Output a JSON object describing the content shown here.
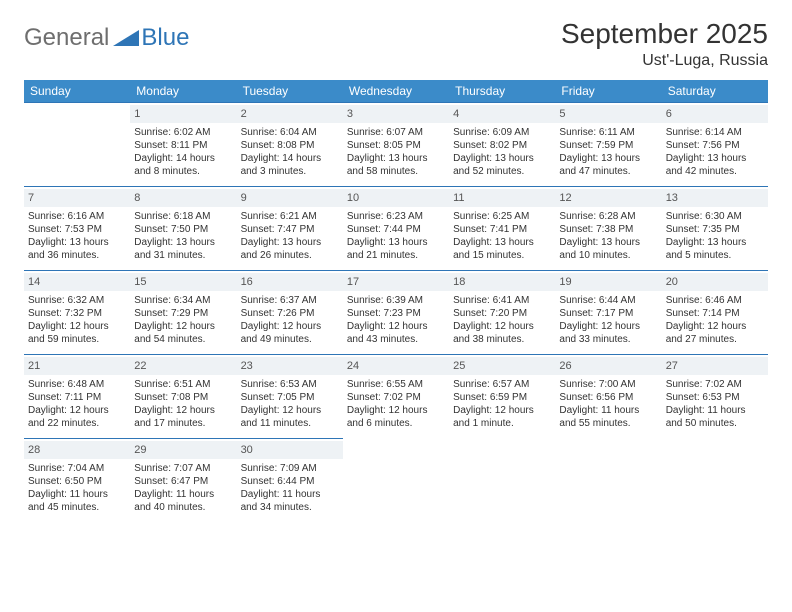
{
  "logo": {
    "general": "General",
    "blue": "Blue"
  },
  "header": {
    "title": "September 2025",
    "location": "Ust'-Luga, Russia"
  },
  "colors": {
    "header_bg": "#3b8bc9",
    "header_text": "#ffffff",
    "daynum_bg": "#eef2f5",
    "row_border": "#2e75b6",
    "logo_general": "#6e6e6e",
    "logo_blue": "#2e75b6"
  },
  "weekdays": [
    "Sunday",
    "Monday",
    "Tuesday",
    "Wednesday",
    "Thursday",
    "Friday",
    "Saturday"
  ],
  "weeks": [
    [
      null,
      {
        "day": "1",
        "sunrise": "Sunrise: 6:02 AM",
        "sunset": "Sunset: 8:11 PM",
        "daylight": "Daylight: 14 hours and 8 minutes."
      },
      {
        "day": "2",
        "sunrise": "Sunrise: 6:04 AM",
        "sunset": "Sunset: 8:08 PM",
        "daylight": "Daylight: 14 hours and 3 minutes."
      },
      {
        "day": "3",
        "sunrise": "Sunrise: 6:07 AM",
        "sunset": "Sunset: 8:05 PM",
        "daylight": "Daylight: 13 hours and 58 minutes."
      },
      {
        "day": "4",
        "sunrise": "Sunrise: 6:09 AM",
        "sunset": "Sunset: 8:02 PM",
        "daylight": "Daylight: 13 hours and 52 minutes."
      },
      {
        "day": "5",
        "sunrise": "Sunrise: 6:11 AM",
        "sunset": "Sunset: 7:59 PM",
        "daylight": "Daylight: 13 hours and 47 minutes."
      },
      {
        "day": "6",
        "sunrise": "Sunrise: 6:14 AM",
        "sunset": "Sunset: 7:56 PM",
        "daylight": "Daylight: 13 hours and 42 minutes."
      }
    ],
    [
      {
        "day": "7",
        "sunrise": "Sunrise: 6:16 AM",
        "sunset": "Sunset: 7:53 PM",
        "daylight": "Daylight: 13 hours and 36 minutes."
      },
      {
        "day": "8",
        "sunrise": "Sunrise: 6:18 AM",
        "sunset": "Sunset: 7:50 PM",
        "daylight": "Daylight: 13 hours and 31 minutes."
      },
      {
        "day": "9",
        "sunrise": "Sunrise: 6:21 AM",
        "sunset": "Sunset: 7:47 PM",
        "daylight": "Daylight: 13 hours and 26 minutes."
      },
      {
        "day": "10",
        "sunrise": "Sunrise: 6:23 AM",
        "sunset": "Sunset: 7:44 PM",
        "daylight": "Daylight: 13 hours and 21 minutes."
      },
      {
        "day": "11",
        "sunrise": "Sunrise: 6:25 AM",
        "sunset": "Sunset: 7:41 PM",
        "daylight": "Daylight: 13 hours and 15 minutes."
      },
      {
        "day": "12",
        "sunrise": "Sunrise: 6:28 AM",
        "sunset": "Sunset: 7:38 PM",
        "daylight": "Daylight: 13 hours and 10 minutes."
      },
      {
        "day": "13",
        "sunrise": "Sunrise: 6:30 AM",
        "sunset": "Sunset: 7:35 PM",
        "daylight": "Daylight: 13 hours and 5 minutes."
      }
    ],
    [
      {
        "day": "14",
        "sunrise": "Sunrise: 6:32 AM",
        "sunset": "Sunset: 7:32 PM",
        "daylight": "Daylight: 12 hours and 59 minutes."
      },
      {
        "day": "15",
        "sunrise": "Sunrise: 6:34 AM",
        "sunset": "Sunset: 7:29 PM",
        "daylight": "Daylight: 12 hours and 54 minutes."
      },
      {
        "day": "16",
        "sunrise": "Sunrise: 6:37 AM",
        "sunset": "Sunset: 7:26 PM",
        "daylight": "Daylight: 12 hours and 49 minutes."
      },
      {
        "day": "17",
        "sunrise": "Sunrise: 6:39 AM",
        "sunset": "Sunset: 7:23 PM",
        "daylight": "Daylight: 12 hours and 43 minutes."
      },
      {
        "day": "18",
        "sunrise": "Sunrise: 6:41 AM",
        "sunset": "Sunset: 7:20 PM",
        "daylight": "Daylight: 12 hours and 38 minutes."
      },
      {
        "day": "19",
        "sunrise": "Sunrise: 6:44 AM",
        "sunset": "Sunset: 7:17 PM",
        "daylight": "Daylight: 12 hours and 33 minutes."
      },
      {
        "day": "20",
        "sunrise": "Sunrise: 6:46 AM",
        "sunset": "Sunset: 7:14 PM",
        "daylight": "Daylight: 12 hours and 27 minutes."
      }
    ],
    [
      {
        "day": "21",
        "sunrise": "Sunrise: 6:48 AM",
        "sunset": "Sunset: 7:11 PM",
        "daylight": "Daylight: 12 hours and 22 minutes."
      },
      {
        "day": "22",
        "sunrise": "Sunrise: 6:51 AM",
        "sunset": "Sunset: 7:08 PM",
        "daylight": "Daylight: 12 hours and 17 minutes."
      },
      {
        "day": "23",
        "sunrise": "Sunrise: 6:53 AM",
        "sunset": "Sunset: 7:05 PM",
        "daylight": "Daylight: 12 hours and 11 minutes."
      },
      {
        "day": "24",
        "sunrise": "Sunrise: 6:55 AM",
        "sunset": "Sunset: 7:02 PM",
        "daylight": "Daylight: 12 hours and 6 minutes."
      },
      {
        "day": "25",
        "sunrise": "Sunrise: 6:57 AM",
        "sunset": "Sunset: 6:59 PM",
        "daylight": "Daylight: 12 hours and 1 minute."
      },
      {
        "day": "26",
        "sunrise": "Sunrise: 7:00 AM",
        "sunset": "Sunset: 6:56 PM",
        "daylight": "Daylight: 11 hours and 55 minutes."
      },
      {
        "day": "27",
        "sunrise": "Sunrise: 7:02 AM",
        "sunset": "Sunset: 6:53 PM",
        "daylight": "Daylight: 11 hours and 50 minutes."
      }
    ],
    [
      {
        "day": "28",
        "sunrise": "Sunrise: 7:04 AM",
        "sunset": "Sunset: 6:50 PM",
        "daylight": "Daylight: 11 hours and 45 minutes."
      },
      {
        "day": "29",
        "sunrise": "Sunrise: 7:07 AM",
        "sunset": "Sunset: 6:47 PM",
        "daylight": "Daylight: 11 hours and 40 minutes."
      },
      {
        "day": "30",
        "sunrise": "Sunrise: 7:09 AM",
        "sunset": "Sunset: 6:44 PM",
        "daylight": "Daylight: 11 hours and 34 minutes."
      },
      null,
      null,
      null,
      null
    ]
  ]
}
